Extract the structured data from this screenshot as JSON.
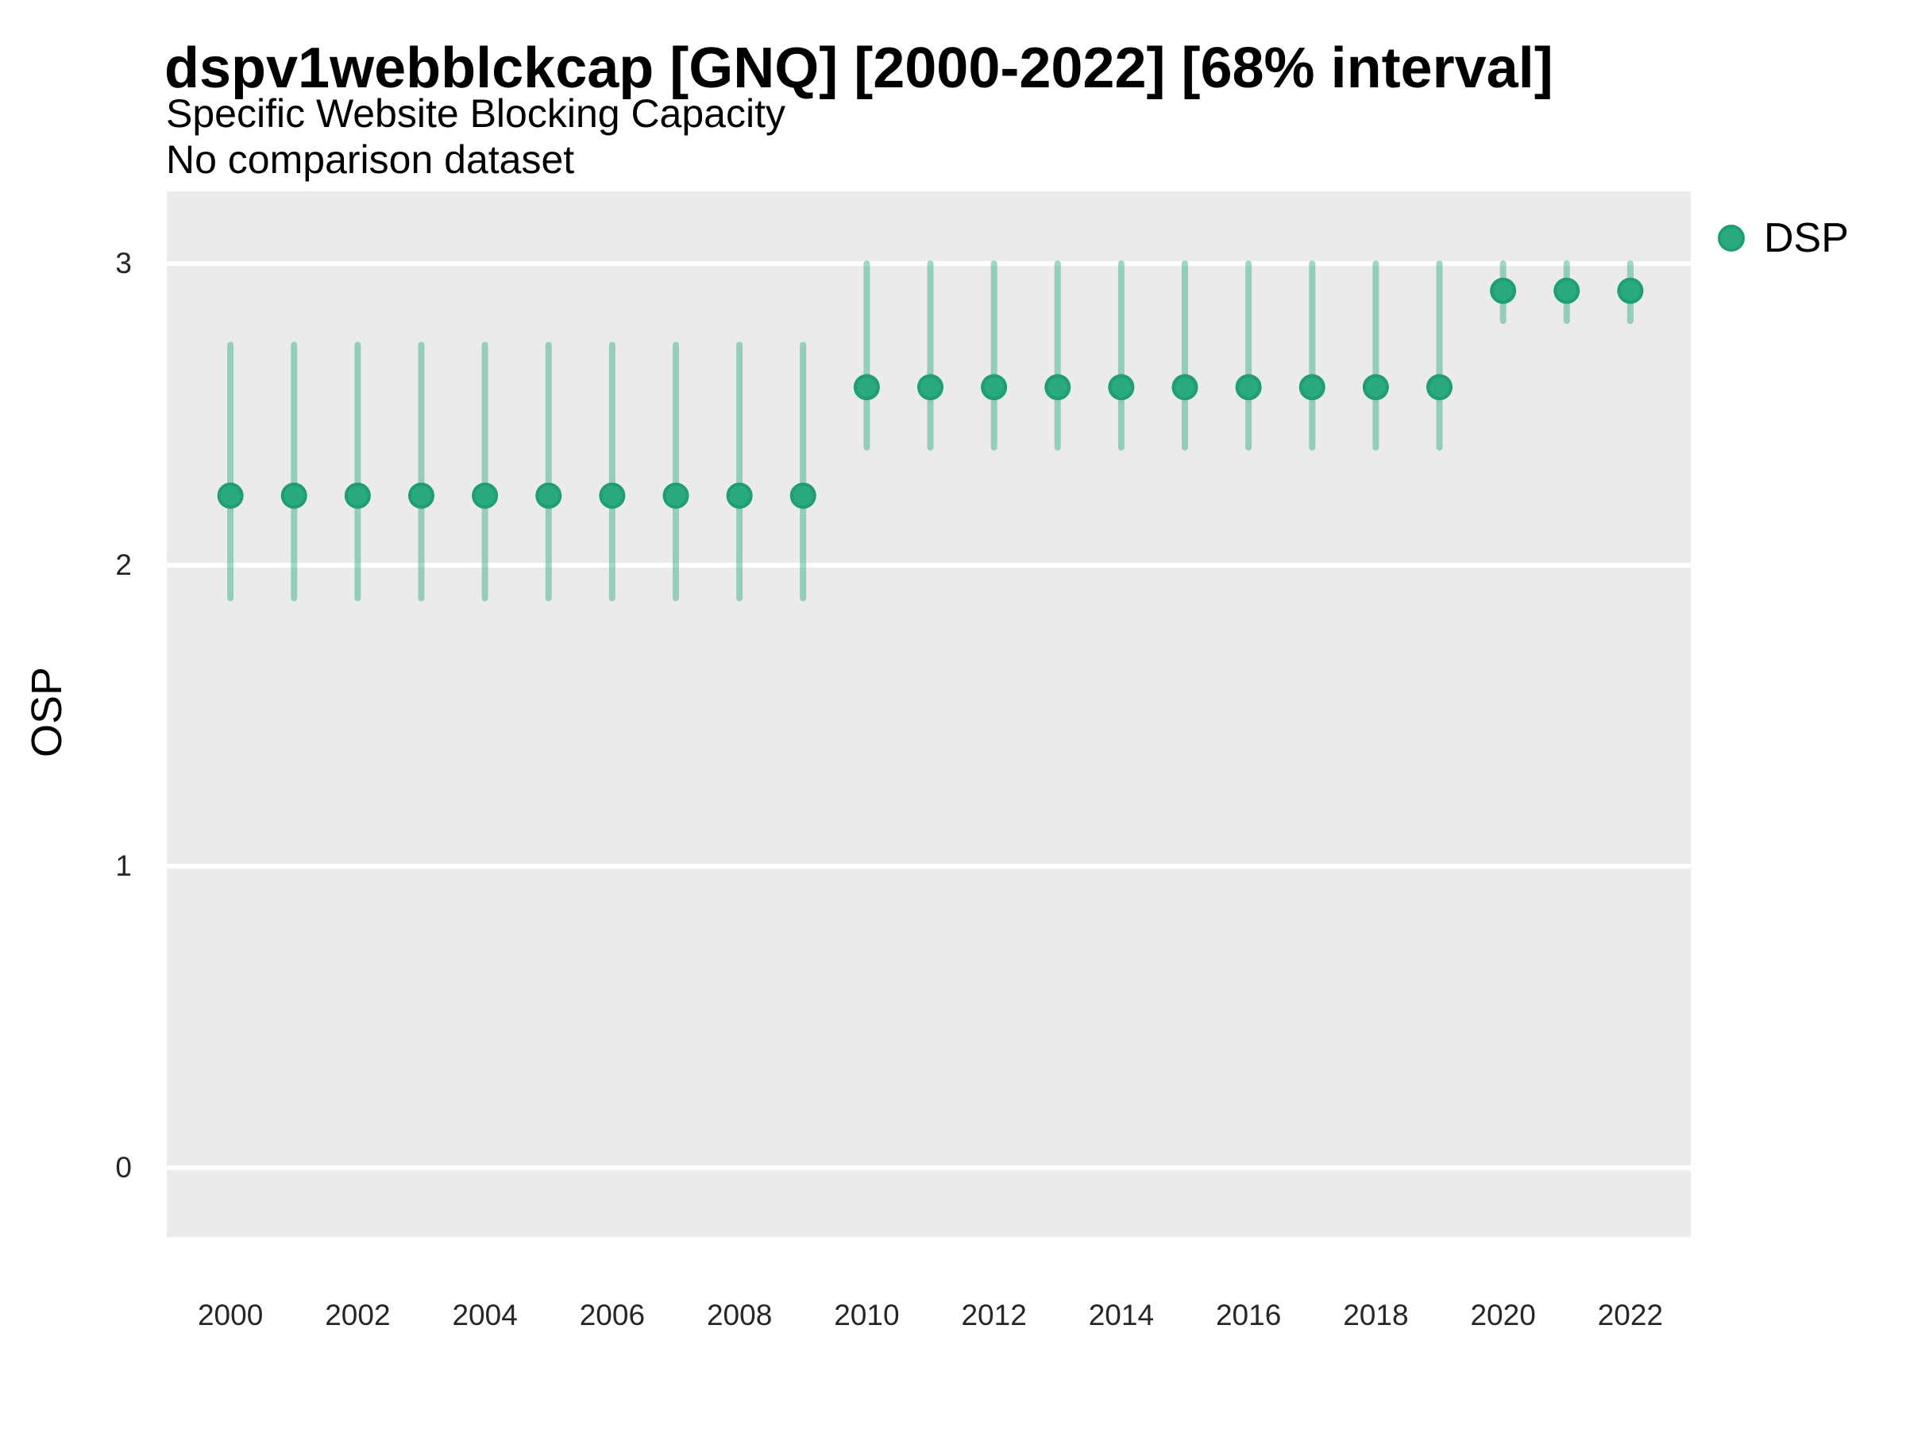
{
  "header": {
    "title": "dspv1webblckcap [GNQ] [2000-2022] [68% interval]",
    "subtitle": "Specific Website Blocking Capacity",
    "note": "No comparison dataset"
  },
  "legend": {
    "position": "right",
    "items": [
      {
        "label": "DSP",
        "color": "#2aa87e"
      }
    ]
  },
  "colors": {
    "marker": "#2aa87e",
    "marker_stroke": "#1e9e71",
    "interval": "rgba(42,168,126,0.45)",
    "panel_bg": "#ebebeb",
    "gridline": "#ffffff",
    "title_text": "#000000",
    "tick_text": "#262626"
  },
  "chart_data": {
    "type": "scatter",
    "subtype": "point-interval",
    "title": "dspv1webblckcap [GNQ] [2000-2022] [68% interval]",
    "subtitle": "Specific Website Blocking Capacity",
    "note": "No comparison dataset",
    "interval": "68%",
    "xlabel": "",
    "ylabel": "OSP",
    "grid": "on",
    "legend_position": "right",
    "x_ticks": [
      2000,
      2002,
      2004,
      2006,
      2008,
      2010,
      2012,
      2014,
      2016,
      2018,
      2020,
      2022
    ],
    "y_ticks": [
      0,
      1,
      2,
      3
    ],
    "xlim": [
      1999.0,
      2022.95
    ],
    "ylim": [
      -0.23,
      3.24
    ],
    "series": [
      {
        "name": "DSP",
        "points": [
          {
            "x": 2000,
            "y": 2.23,
            "lo": 1.89,
            "hi": 2.73
          },
          {
            "x": 2001,
            "y": 2.23,
            "lo": 1.89,
            "hi": 2.73
          },
          {
            "x": 2002,
            "y": 2.23,
            "lo": 1.89,
            "hi": 2.73
          },
          {
            "x": 2003,
            "y": 2.23,
            "lo": 1.89,
            "hi": 2.73
          },
          {
            "x": 2004,
            "y": 2.23,
            "lo": 1.89,
            "hi": 2.73
          },
          {
            "x": 2005,
            "y": 2.23,
            "lo": 1.89,
            "hi": 2.73
          },
          {
            "x": 2006,
            "y": 2.23,
            "lo": 1.89,
            "hi": 2.73
          },
          {
            "x": 2007,
            "y": 2.23,
            "lo": 1.89,
            "hi": 2.73
          },
          {
            "x": 2008,
            "y": 2.23,
            "lo": 1.89,
            "hi": 2.73
          },
          {
            "x": 2009,
            "y": 2.23,
            "lo": 1.89,
            "hi": 2.73
          },
          {
            "x": 2010,
            "y": 2.59,
            "lo": 2.39,
            "hi": 3.0
          },
          {
            "x": 2011,
            "y": 2.59,
            "lo": 2.39,
            "hi": 3.0
          },
          {
            "x": 2012,
            "y": 2.59,
            "lo": 2.39,
            "hi": 3.0
          },
          {
            "x": 2013,
            "y": 2.59,
            "lo": 2.39,
            "hi": 3.0
          },
          {
            "x": 2014,
            "y": 2.59,
            "lo": 2.39,
            "hi": 3.0
          },
          {
            "x": 2015,
            "y": 2.59,
            "lo": 2.39,
            "hi": 3.0
          },
          {
            "x": 2016,
            "y": 2.59,
            "lo": 2.39,
            "hi": 3.0
          },
          {
            "x": 2017,
            "y": 2.59,
            "lo": 2.39,
            "hi": 3.0
          },
          {
            "x": 2018,
            "y": 2.59,
            "lo": 2.39,
            "hi": 3.0
          },
          {
            "x": 2019,
            "y": 2.59,
            "lo": 2.39,
            "hi": 3.0
          },
          {
            "x": 2020,
            "y": 2.91,
            "lo": 2.81,
            "hi": 3.0
          },
          {
            "x": 2021,
            "y": 2.91,
            "lo": 2.81,
            "hi": 3.0
          },
          {
            "x": 2022,
            "y": 2.91,
            "lo": 2.81,
            "hi": 3.0
          }
        ]
      }
    ]
  }
}
